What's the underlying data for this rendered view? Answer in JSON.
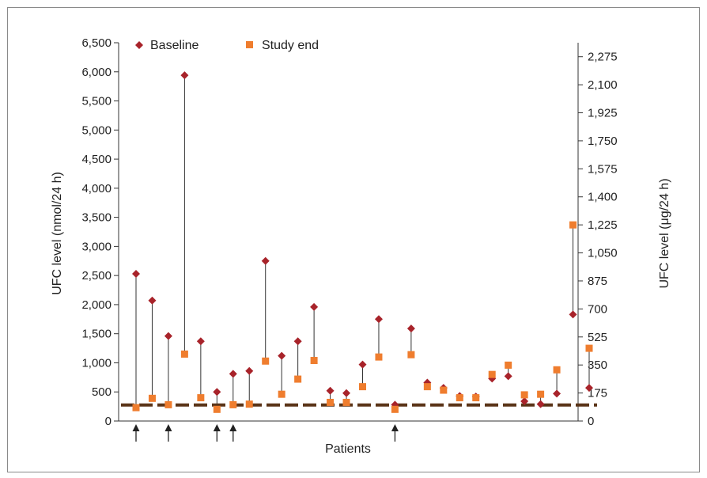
{
  "chart_data": {
    "type": "scatter",
    "xlabel": "Patients",
    "ylabel_left": "UFC level (nmol/24 h)",
    "ylabel_right": "UFC level (μg/24 h)",
    "ylim_left": [
      0,
      6500
    ],
    "ylim_right": [
      0,
      2362.5
    ],
    "left_ticks": [
      0,
      500,
      1000,
      1500,
      2000,
      2500,
      3000,
      3500,
      4000,
      4500,
      5000,
      5500,
      6000,
      6500
    ],
    "left_tick_labels": [
      "0",
      "500",
      "1,000",
      "1,500",
      "2,000",
      "2,500",
      "3,000",
      "3,500",
      "4,000",
      "4,500",
      "5,000",
      "5,500",
      "6,000",
      "6,500"
    ],
    "right_ticks": [
      0,
      175,
      350,
      525,
      700,
      875,
      1050,
      1225,
      1400,
      1575,
      1750,
      1925,
      2100,
      2275
    ],
    "right_tick_labels": [
      "0",
      "175",
      "350",
      "525",
      "700",
      "875",
      "1,050",
      "1,225",
      "1,400",
      "1,575",
      "1,750",
      "1,925",
      "2,100",
      "2,275"
    ],
    "grid": false,
    "legend_position": "top-left",
    "reference_line_nmol": 276,
    "arrow_patients": [
      1,
      3,
      6,
      7,
      17
    ],
    "colors": {
      "baseline": "#a8232a",
      "study_end": "#ef7d2e",
      "reference_line": "#5a3418",
      "connector": "#333333",
      "axis": "#333333"
    },
    "series": [
      {
        "name": "Baseline",
        "marker": "diamond",
        "values": [
          2530,
          2070,
          1460,
          5940,
          1370,
          500,
          810,
          860,
          2750,
          1120,
          1370,
          1960,
          520,
          480,
          970,
          1750,
          280,
          1590,
          660,
          570,
          430,
          420,
          730,
          770,
          340,
          290,
          470,
          1830,
          570
        ]
      },
      {
        "name": "Study end",
        "marker": "square",
        "values": [
          230,
          390,
          280,
          1150,
          400,
          200,
          280,
          290,
          1030,
          460,
          720,
          1040,
          320,
          320,
          590,
          1100,
          200,
          1140,
          590,
          530,
          400,
          400,
          800,
          960,
          450,
          460,
          880,
          3370,
          1250
        ]
      }
    ],
    "x": [
      1,
      2,
      3,
      4,
      5,
      6,
      7,
      8,
      9,
      10,
      11,
      12,
      13,
      14,
      15,
      16,
      17,
      18,
      19,
      20,
      21,
      22,
      23,
      24,
      25,
      26,
      27,
      28,
      29
    ]
  }
}
